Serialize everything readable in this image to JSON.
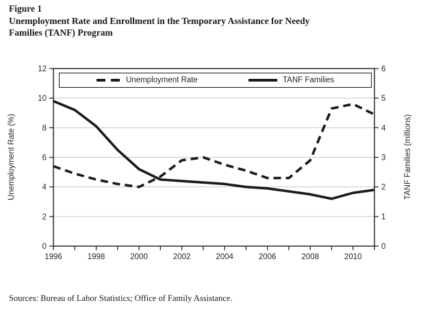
{
  "figure": {
    "label": "Figure 1",
    "title_line1": "Unemployment Rate and Enrollment in the Temporary Assistance for Needy",
    "title_line2": "Families (TANF) Program",
    "source_note": "Sources: Bureau of Labor Statistics; Office of Family Assistance."
  },
  "chart_data": {
    "type": "line",
    "x": [
      1996,
      1997,
      1998,
      1999,
      2000,
      2001,
      2002,
      2003,
      2004,
      2005,
      2006,
      2007,
      2008,
      2009,
      2010,
      2011
    ],
    "series": [
      {
        "name": "Unemployment Rate",
        "axis": "left",
        "style": "dashed",
        "color": "#1a1a1a",
        "values": [
          5.4,
          4.9,
          4.5,
          4.2,
          4.0,
          4.7,
          5.8,
          6.0,
          5.5,
          5.1,
          4.6,
          4.6,
          5.8,
          9.3,
          9.6,
          8.9
        ]
      },
      {
        "name": "TANF Families",
        "axis": "right",
        "style": "solid",
        "color": "#1a1a1a",
        "values": [
          4.9,
          4.6,
          4.05,
          3.25,
          2.6,
          2.25,
          2.2,
          2.15,
          2.1,
          2.0,
          1.95,
          1.85,
          1.75,
          1.6,
          1.8,
          1.9
        ]
      }
    ],
    "left_axis": {
      "label": "Unemployment Rate (%)",
      "min": 0,
      "max": 12,
      "tick_step": 2
    },
    "right_axis": {
      "label": "TANF Families (millions)",
      "min": 0,
      "max": 6,
      "tick_step": 1
    },
    "x_axis": {
      "min": 1996,
      "max": 2011,
      "tick_step": 1,
      "label_step": 2
    },
    "legend": {
      "position": "top-inside"
    },
    "grid": true,
    "colors": {
      "line": "#1a1a1a",
      "grid": "#c8c8c8",
      "text": "#262626"
    }
  }
}
